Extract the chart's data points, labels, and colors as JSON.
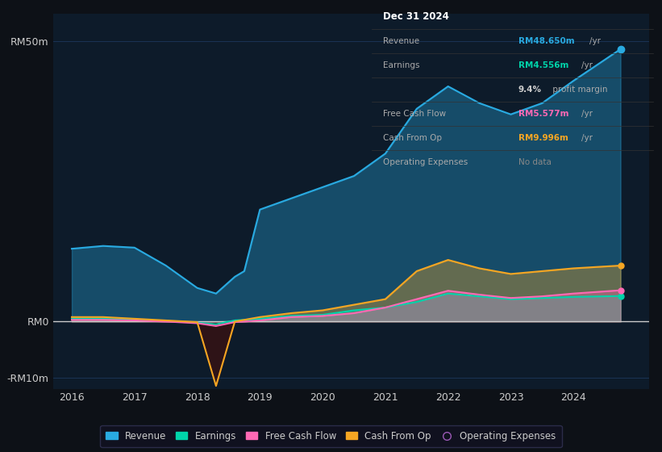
{
  "bg_color": "#0d1117",
  "plot_bg_color": "#0d1b2a",
  "grid_color": "#1e3a5f",
  "years": [
    2016,
    2016.5,
    2017,
    2017.5,
    2018,
    2018.3,
    2018.6,
    2018.75,
    2019,
    2019.5,
    2020,
    2020.5,
    2021,
    2021.5,
    2022,
    2022.5,
    2023,
    2023.5,
    2024,
    2024.75
  ],
  "revenue": [
    13,
    13.5,
    13.2,
    10,
    6,
    5,
    8,
    9,
    20,
    22,
    24,
    26,
    30,
    38,
    42,
    39,
    37,
    39,
    43,
    48.65
  ],
  "earnings": [
    0.5,
    0.5,
    0.3,
    0.1,
    -0.2,
    -0.5,
    0.2,
    0.3,
    0.5,
    1.0,
    1.2,
    2.0,
    2.5,
    3.5,
    5.0,
    4.5,
    4.0,
    4.2,
    4.4,
    4.556
  ],
  "free_cash_flow": [
    0.3,
    0.3,
    0.2,
    0.0,
    -0.3,
    -0.8,
    -0.1,
    0.0,
    0.2,
    0.8,
    1.0,
    1.5,
    2.5,
    4.0,
    5.5,
    4.8,
    4.2,
    4.5,
    5.0,
    5.577
  ],
  "cash_from_op": [
    0.8,
    0.8,
    0.5,
    0.2,
    -0.1,
    -11.5,
    0.0,
    0.3,
    0.8,
    1.5,
    2.0,
    3.0,
    4.0,
    9.0,
    11.0,
    9.5,
    8.5,
    9.0,
    9.5,
    9.996
  ],
  "revenue_color": "#29aae1",
  "earnings_color": "#00d4aa",
  "free_cash_flow_color": "#ff69b4",
  "cash_from_op_color": "#f5a623",
  "op_expenses_color": "#9b59b6",
  "revenue_fill_alpha": 0.35,
  "earnings_fill_alpha": 0.35,
  "free_cash_flow_fill_alpha": 0.35,
  "cash_from_op_fill_alpha": 0.35,
  "ylim_min": -12,
  "ylim_max": 55,
  "yticks": [
    -10,
    0,
    50
  ],
  "ytick_labels": [
    "-RM10m",
    "RM0",
    "RM50m"
  ],
  "xtick_labels": [
    "2016",
    "2017",
    "2018",
    "2019",
    "2020",
    "2021",
    "2022",
    "2023",
    "2024"
  ],
  "xtick_positions": [
    2016,
    2017,
    2018,
    2019,
    2020,
    2021,
    2022,
    2023,
    2024
  ],
  "tooltip_bg": "#0a0a0a",
  "tooltip_border": "#333333",
  "tooltip_title": "Dec 31 2024",
  "info_rows": [
    {
      "label": "Revenue",
      "value": "RM48.650m",
      "unit": "/yr",
      "color": "#29aae1",
      "is_title": false,
      "indent": false
    },
    {
      "label": "Earnings",
      "value": "RM4.556m",
      "unit": "/yr",
      "color": "#00d4aa",
      "is_title": false,
      "indent": false
    },
    {
      "label": "",
      "value": "9.4%",
      "unit": " profit margin",
      "color": "#cccccc",
      "is_title": false,
      "indent": true
    },
    {
      "label": "Free Cash Flow",
      "value": "RM5.577m",
      "unit": "/yr",
      "color": "#ff69b4",
      "is_title": false,
      "indent": false
    },
    {
      "label": "Cash From Op",
      "value": "RM9.996m",
      "unit": "/yr",
      "color": "#f5a623",
      "is_title": false,
      "indent": false
    },
    {
      "label": "Operating Expenses",
      "value": "No data",
      "unit": "",
      "color": "#888888",
      "is_title": false,
      "indent": false
    }
  ],
  "legend_items": [
    {
      "label": "Revenue",
      "color": "#29aae1",
      "filled": true
    },
    {
      "label": "Earnings",
      "color": "#00d4aa",
      "filled": true
    },
    {
      "label": "Free Cash Flow",
      "color": "#ff69b4",
      "filled": true
    },
    {
      "label": "Cash From Op",
      "color": "#f5a623",
      "filled": true
    },
    {
      "label": "Operating Expenses",
      "color": "#9b59b6",
      "filled": false
    }
  ]
}
